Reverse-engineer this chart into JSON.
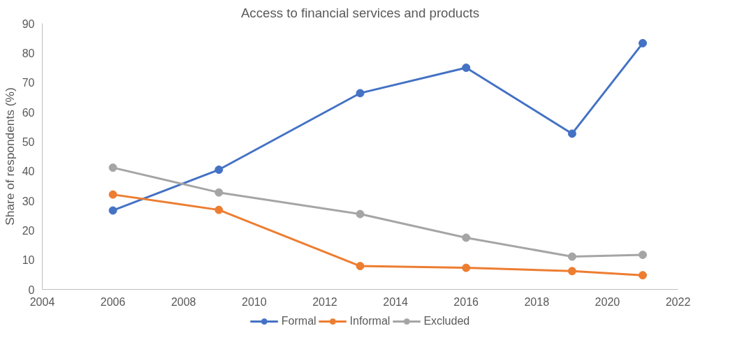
{
  "chart_data": {
    "type": "line",
    "title": "Access to financial services and products",
    "ylabel": "Share of respondents (%)",
    "x": [
      2006,
      2009,
      2013,
      2016,
      2019,
      2021
    ],
    "series": [
      {
        "name": "Formal",
        "color": "#4472c4",
        "values": [
          26.7,
          40.5,
          66.4,
          75.0,
          52.7,
          83.3
        ]
      },
      {
        "name": "Informal",
        "color": "#ed7d31",
        "values": [
          32.1,
          26.9,
          7.9,
          7.3,
          6.2,
          4.8
        ]
      },
      {
        "name": "Excluded",
        "color": "#a5a5a5",
        "values": [
          41.2,
          32.8,
          25.5,
          17.5,
          11.1,
          11.7
        ]
      }
    ],
    "xlim": [
      2004,
      2022
    ],
    "xticks": [
      2004,
      2006,
      2008,
      2010,
      2012,
      2014,
      2016,
      2018,
      2020,
      2022
    ],
    "ylim": [
      0,
      90
    ],
    "yticks": [
      0,
      10,
      20,
      30,
      40,
      50,
      60,
      70,
      80,
      90
    ],
    "grid": false,
    "legend": "bottom",
    "marker": "circle",
    "line_style": "solid"
  }
}
